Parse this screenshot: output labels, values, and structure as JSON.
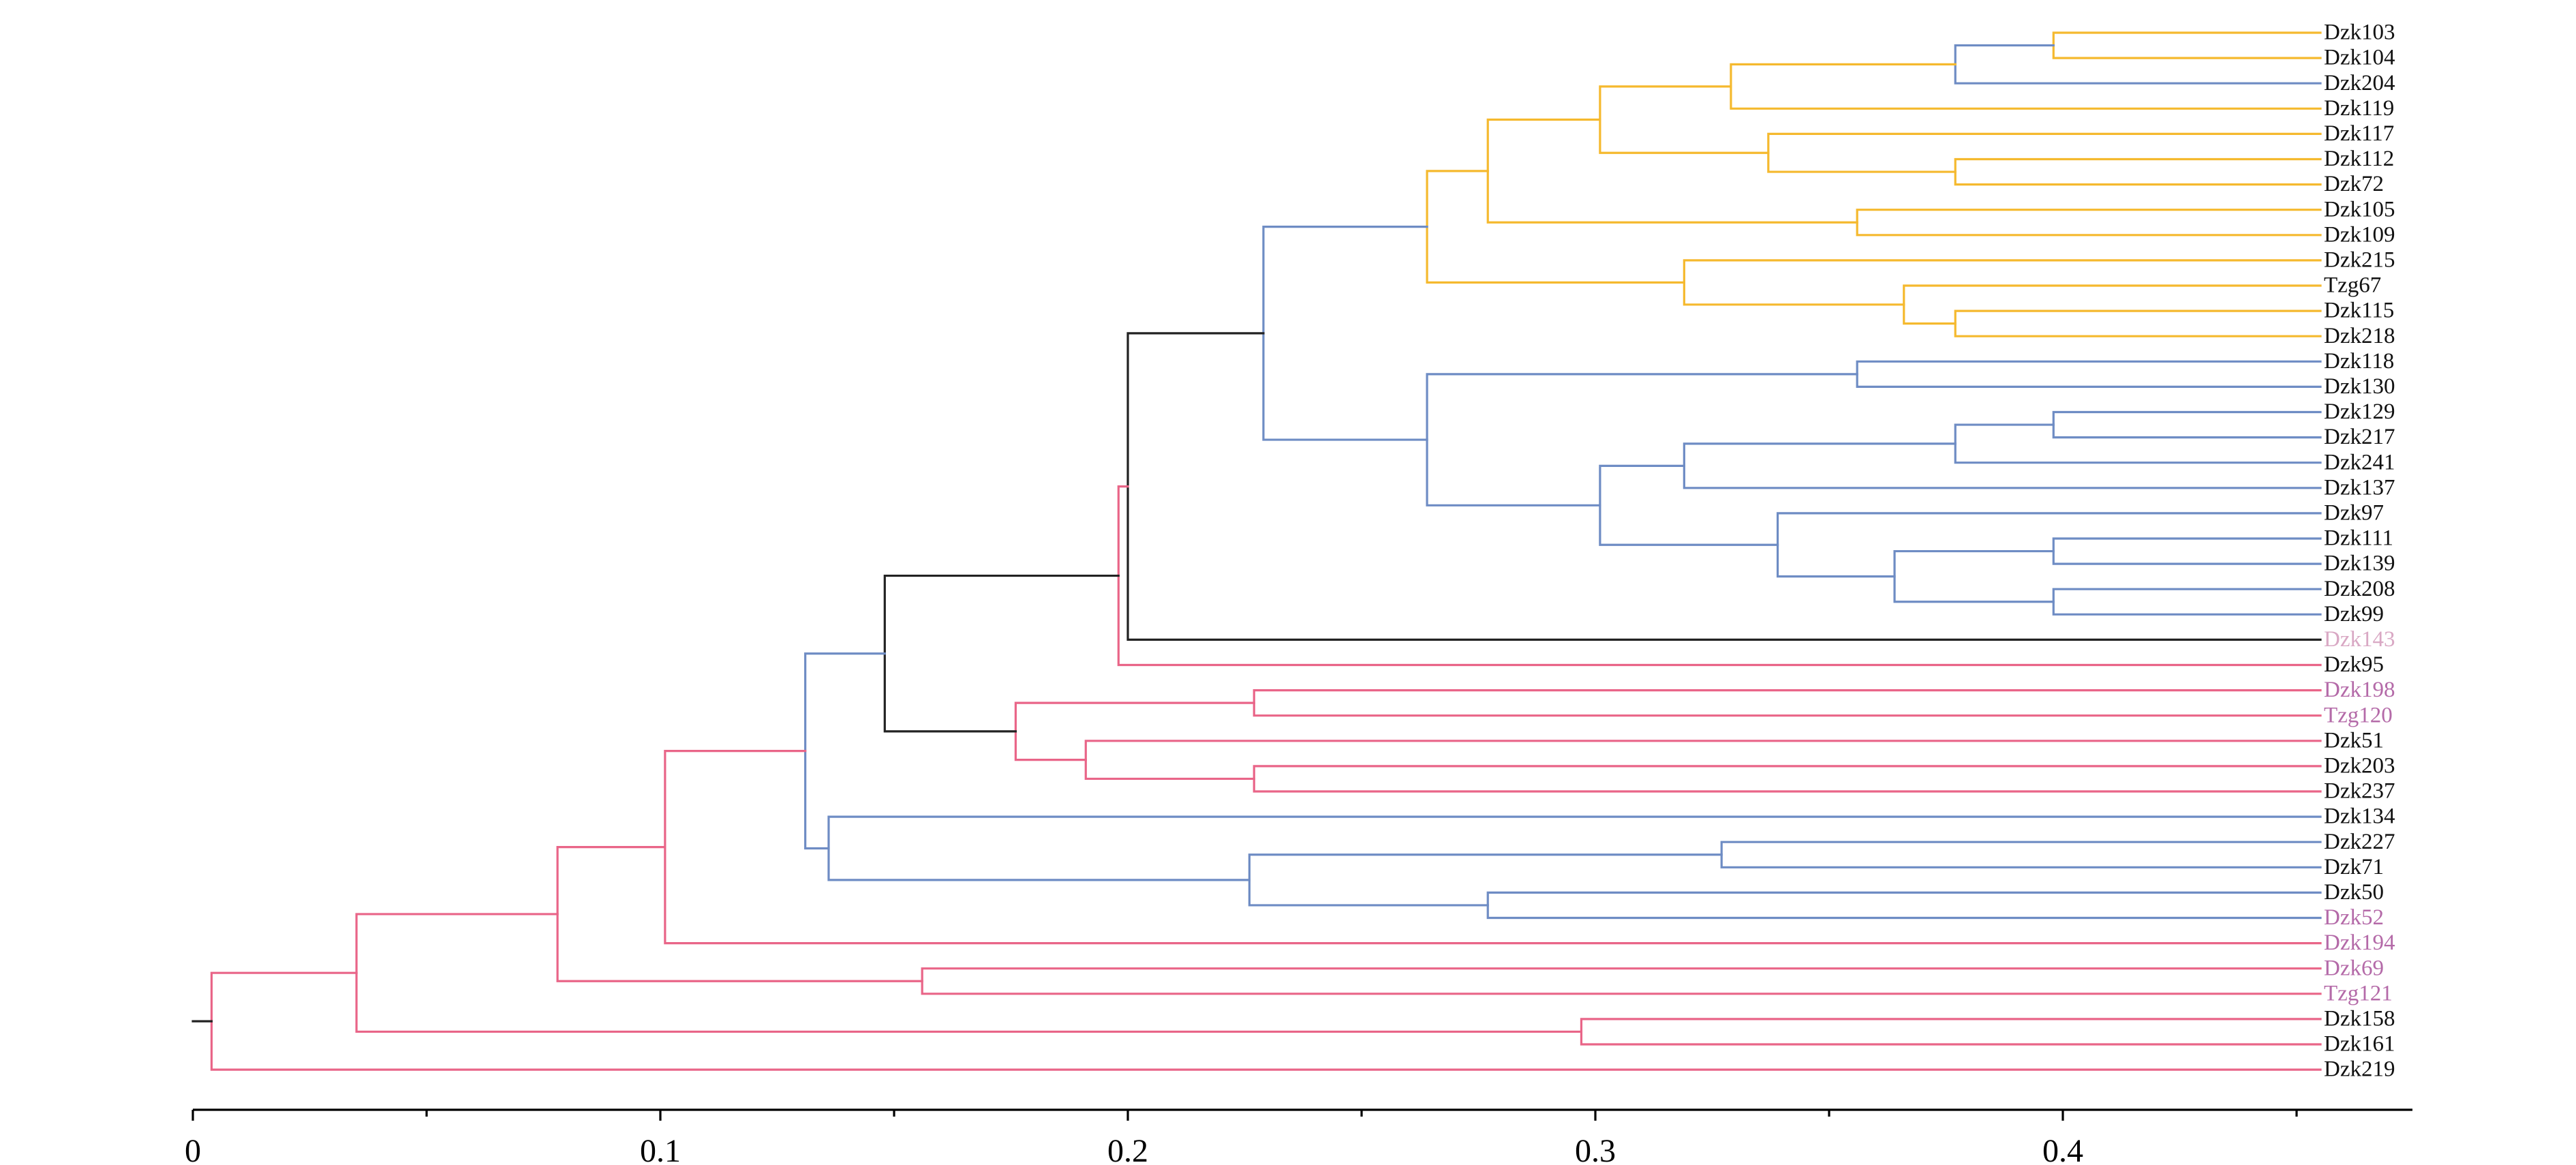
{
  "chart_data": {
    "type": "dendrogram",
    "xlim": [
      0,
      0.475
    ],
    "x_ticks": [
      "0",
      "0.1",
      "0.2",
      "0.3",
      "0.4"
    ],
    "x_tick_values": [
      0,
      0.1,
      0.2,
      0.3,
      0.4
    ],
    "x_minor_ticks": [
      0.05,
      0.15,
      0.25,
      0.35,
      0.45
    ],
    "colors": {
      "black": "#222222",
      "yellow": "#f5b92e",
      "blue": "#6e8cc4",
      "pink": "#e96588",
      "light": "#d9a8c4",
      "purple": "#b46aa8",
      "label": "#111111"
    },
    "leaves": [
      {
        "name": "Dzk103",
        "color": "label"
      },
      {
        "name": "Dzk104",
        "color": "label"
      },
      {
        "name": "Dzk204",
        "color": "label"
      },
      {
        "name": "Dzk119",
        "color": "label"
      },
      {
        "name": "Dzk117",
        "color": "label"
      },
      {
        "name": "Dzk112",
        "color": "label"
      },
      {
        "name": "Dzk72",
        "color": "label"
      },
      {
        "name": "Dzk105",
        "color": "label"
      },
      {
        "name": "Dzk109",
        "color": "label"
      },
      {
        "name": "Dzk215",
        "color": "label"
      },
      {
        "name": "Tzg67",
        "color": "label"
      },
      {
        "name": "Dzk115",
        "color": "label"
      },
      {
        "name": "Dzk218",
        "color": "label"
      },
      {
        "name": "Dzk118",
        "color": "label"
      },
      {
        "name": "Dzk130",
        "color": "label"
      },
      {
        "name": "Dzk129",
        "color": "label"
      },
      {
        "name": "Dzk217",
        "color": "label"
      },
      {
        "name": "Dzk241",
        "color": "label"
      },
      {
        "name": "Dzk137",
        "color": "label"
      },
      {
        "name": "Dzk97",
        "color": "label"
      },
      {
        "name": "Dzk111",
        "color": "label"
      },
      {
        "name": "Dzk139",
        "color": "label"
      },
      {
        "name": "Dzk208",
        "color": "label"
      },
      {
        "name": "Dzk99",
        "color": "label"
      },
      {
        "name": "Dzk143",
        "color": "light"
      },
      {
        "name": "Dzk95",
        "color": "label"
      },
      {
        "name": "Dzk198",
        "color": "purple"
      },
      {
        "name": "Tzg120",
        "color": "purple"
      },
      {
        "name": "Dzk51",
        "color": "label"
      },
      {
        "name": "Dzk203",
        "color": "label"
      },
      {
        "name": "Dzk237",
        "color": "label"
      },
      {
        "name": "Dzk134",
        "color": "label"
      },
      {
        "name": "Dzk227",
        "color": "label"
      },
      {
        "name": "Dzk71",
        "color": "label"
      },
      {
        "name": "Dzk50",
        "color": "label"
      },
      {
        "name": "Dzk52",
        "color": "purple"
      },
      {
        "name": "Dzk194",
        "color": "purple"
      },
      {
        "name": "Dzk69",
        "color": "purple"
      },
      {
        "name": "Tzg121",
        "color": "purple"
      },
      {
        "name": "Dzk158",
        "color": "label"
      },
      {
        "name": "Dzk161",
        "color": "label"
      },
      {
        "name": "Dzk219",
        "color": "label"
      }
    ],
    "merges": [
      {
        "id": "a1",
        "height": 0.398,
        "children": [
          "Dzk103",
          "Dzk104"
        ],
        "color": "yellow"
      },
      {
        "id": "a2",
        "height": 0.377,
        "children": [
          "a1",
          "Dzk204"
        ],
        "color": "blue"
      },
      {
        "id": "a3",
        "height": 0.377,
        "children": [
          "Dzk112",
          "Dzk72"
        ],
        "color": "yellow"
      },
      {
        "id": "a4",
        "height": 0.337,
        "children": [
          "Dzk117",
          "a3"
        ],
        "color": "yellow"
      },
      {
        "id": "a5",
        "height": 0.329,
        "children": [
          "a2",
          "Dzk119"
        ],
        "color": "yellow"
      },
      {
        "id": "a6",
        "height": 0.301,
        "children": [
          "a5",
          "a4"
        ],
        "color": "yellow"
      },
      {
        "id": "a7",
        "height": 0.356,
        "children": [
          "Dzk105",
          "Dzk109"
        ],
        "color": "yellow"
      },
      {
        "id": "a8",
        "height": 0.277,
        "children": [
          "a6",
          "a7"
        ],
        "color": "yellow"
      },
      {
        "id": "a9",
        "height": 0.377,
        "children": [
          "Dzk115",
          "Dzk218"
        ],
        "color": "yellow"
      },
      {
        "id": "a10",
        "height": 0.366,
        "children": [
          "Tzg67",
          "a9"
        ],
        "color": "yellow"
      },
      {
        "id": "a11",
        "height": 0.319,
        "children": [
          "Dzk215",
          "a10"
        ],
        "color": "yellow"
      },
      {
        "id": "a12",
        "height": 0.264,
        "children": [
          "a8",
          "a11"
        ],
        "color": "yellow"
      },
      {
        "id": "b1",
        "height": 0.356,
        "children": [
          "Dzk118",
          "Dzk130"
        ],
        "color": "blue"
      },
      {
        "id": "b2",
        "height": 0.398,
        "children": [
          "Dzk129",
          "Dzk217"
        ],
        "color": "blue"
      },
      {
        "id": "b3",
        "height": 0.377,
        "children": [
          "b2",
          "Dzk241"
        ],
        "color": "blue"
      },
      {
        "id": "b4",
        "height": 0.319,
        "children": [
          "b3",
          "Dzk137"
        ],
        "color": "blue"
      },
      {
        "id": "b5",
        "height": 0.398,
        "children": [
          "Dzk111",
          "Dzk139"
        ],
        "color": "blue"
      },
      {
        "id": "b6",
        "height": 0.398,
        "children": [
          "Dzk208",
          "Dzk99"
        ],
        "color": "blue"
      },
      {
        "id": "b7",
        "height": 0.364,
        "children": [
          "b5",
          "b6"
        ],
        "color": "blue"
      },
      {
        "id": "b8",
        "height": 0.339,
        "children": [
          "Dzk97",
          "b7"
        ],
        "color": "blue"
      },
      {
        "id": "b9",
        "height": 0.301,
        "children": [
          "b4",
          "b8"
        ],
        "color": "blue"
      },
      {
        "id": "b10",
        "height": 0.264,
        "children": [
          "b1",
          "b9"
        ],
        "color": "blue"
      },
      {
        "id": "c1",
        "height": 0.229,
        "children": [
          "a12",
          "b10"
        ],
        "color": "blue"
      },
      {
        "id": "c2",
        "height": 0.2,
        "children": [
          "c1",
          "Dzk143"
        ],
        "color": "black"
      },
      {
        "id": "c3",
        "height": 0.198,
        "children": [
          "c2",
          "Dzk95"
        ],
        "color": "pink"
      },
      {
        "id": "d1",
        "height": 0.227,
        "children": [
          "Dzk198",
          "Tzg120"
        ],
        "color": "pink"
      },
      {
        "id": "d2",
        "height": 0.227,
        "children": [
          "Dzk203",
          "Dzk237"
        ],
        "color": "pink"
      },
      {
        "id": "d3",
        "height": 0.191,
        "children": [
          "Dzk51",
          "d2"
        ],
        "color": "pink"
      },
      {
        "id": "d4",
        "height": 0.176,
        "children": [
          "d1",
          "d3"
        ],
        "color": "pink"
      },
      {
        "id": "d5",
        "height": 0.148,
        "children": [
          "c3",
          "d4"
        ],
        "color": "black"
      },
      {
        "id": "e1",
        "height": 0.327,
        "children": [
          "Dzk227",
          "Dzk71"
        ],
        "color": "blue"
      },
      {
        "id": "e2",
        "height": 0.277,
        "children": [
          "Dzk50",
          "Dzk52"
        ],
        "color": "blue"
      },
      {
        "id": "e3",
        "height": 0.226,
        "children": [
          "e1",
          "e2"
        ],
        "color": "blue"
      },
      {
        "id": "e4",
        "height": 0.136,
        "children": [
          "Dzk134",
          "e3"
        ],
        "color": "blue"
      },
      {
        "id": "e5",
        "height": 0.131,
        "children": [
          "d5",
          "e4"
        ],
        "color": "blue"
      },
      {
        "id": "f1",
        "height": 0.101,
        "children": [
          "e5",
          "Dzk194"
        ],
        "color": "pink"
      },
      {
        "id": "f2",
        "height": 0.156,
        "children": [
          "Dzk69",
          "Tzg121"
        ],
        "color": "pink"
      },
      {
        "id": "f3",
        "height": 0.078,
        "children": [
          "f1",
          "f2"
        ],
        "color": "pink"
      },
      {
        "id": "f4",
        "height": 0.297,
        "children": [
          "Dzk158",
          "Dzk161"
        ],
        "color": "pink"
      },
      {
        "id": "f5",
        "height": 0.035,
        "children": [
          "f3",
          "f4"
        ],
        "color": "pink"
      },
      {
        "id": "f6",
        "height": 0.004,
        "children": [
          "f5",
          "Dzk219"
        ],
        "color": "pink"
      }
    ]
  }
}
